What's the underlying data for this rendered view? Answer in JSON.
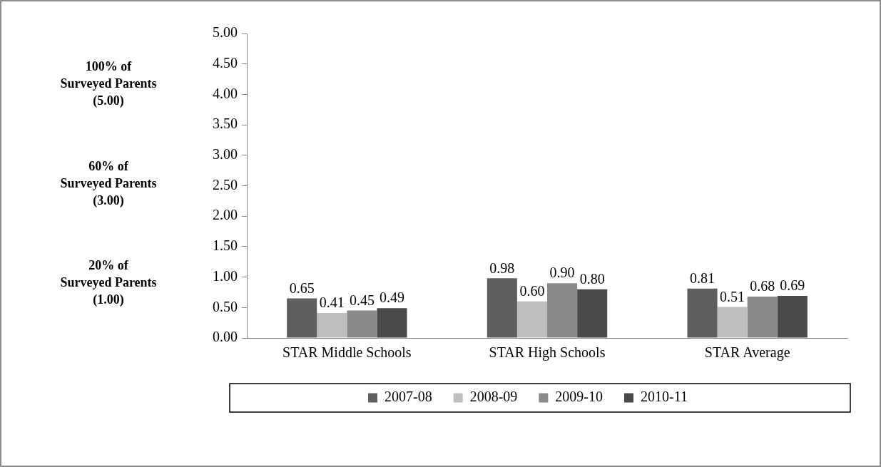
{
  "chart_data": {
    "type": "bar",
    "categories": [
      "STAR Middle Schools",
      "STAR High Schools",
      "STAR Average"
    ],
    "series": [
      {
        "name": "2007-08",
        "color": "#5f5f5f",
        "values": [
          0.65,
          0.98,
          0.81
        ],
        "value_labels": [
          "0.65",
          "0.98",
          "0.81"
        ]
      },
      {
        "name": "2008-09",
        "color": "#bebebe",
        "values": [
          0.41,
          0.6,
          0.51
        ],
        "value_labels": [
          "0.41",
          "0.60",
          "0.51"
        ]
      },
      {
        "name": "2009-10",
        "color": "#8a8a8a",
        "values": [
          0.45,
          0.9,
          0.68
        ],
        "value_labels": [
          "0.45",
          "0.90",
          "0.68"
        ]
      },
      {
        "name": "2010-11",
        "color": "#4a4a4a",
        "values": [
          0.49,
          0.8,
          0.69
        ],
        "value_labels": [
          "0.49",
          "0.80",
          "0.69"
        ]
      }
    ],
    "ylim": [
      0,
      5
    ],
    "yticks": [
      {
        "value": 0,
        "label": "0.00"
      },
      {
        "value": 0.5,
        "label": "0.50"
      },
      {
        "value": 1,
        "label": "1.00"
      },
      {
        "value": 1.5,
        "label": "1.50"
      },
      {
        "value": 2,
        "label": "2.00"
      },
      {
        "value": 2.5,
        "label": "2.50"
      },
      {
        "value": 3,
        "label": "3.00"
      },
      {
        "value": 3.5,
        "label": "3.50"
      },
      {
        "value": 4,
        "label": "4.00"
      },
      {
        "value": 4.5,
        "label": "4.50"
      },
      {
        "value": 5,
        "label": "5.00"
      }
    ],
    "annotations": [
      "100% of\nSurveyed Parents\n(5.00)",
      "60% of\nSurveyed Parents\n(3.00)",
      "20% of\nSurveyed Parents\n(1.00)"
    ],
    "grid": false,
    "legend": "bottom"
  }
}
